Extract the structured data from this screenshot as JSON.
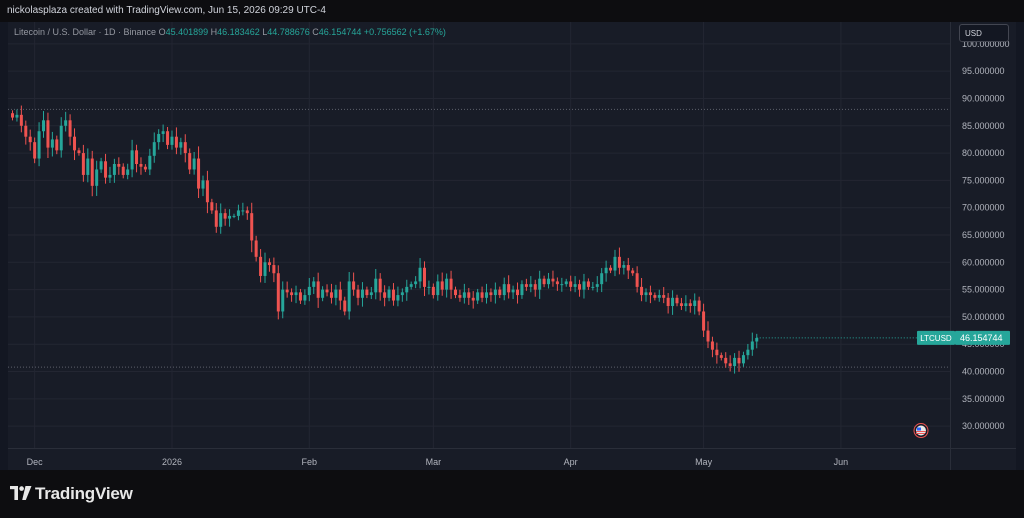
{
  "header": {
    "attribution": "nickolasplaza created with TradingView.com, Jun 15, 2026 09:29 UTC-4"
  },
  "legend": {
    "symbol": "Litecoin / U.S. Dollar · 1D · Binance",
    "o_label": "O",
    "o": "45.401899",
    "h_label": "H",
    "h": "46.183462",
    "l_label": "L",
    "l": "44.788676",
    "c_label": "C",
    "c": "46.154744",
    "change": "+0.756562 (+1.67%)"
  },
  "currency_button": "USD",
  "last_price_label": {
    "ticker": "LTCUSD",
    "price": "46.154744"
  },
  "footer": {
    "brand": "TradingView"
  },
  "colors": {
    "up": "#26a69a",
    "down": "#ef5350",
    "background": "#181c27",
    "grid": "#232632",
    "text": "#b2b5be"
  },
  "chart_data": {
    "type": "candlestick",
    "title": "Litecoin / U.S. Dollar · 1D · Binance",
    "ylim": [
      26,
      104
    ],
    "y_ticks": [
      "30.000000",
      "35.000000",
      "40.000000",
      "45.000000",
      "50.000000",
      "55.000000",
      "60.000000",
      "65.000000",
      "70.000000",
      "75.000000",
      "80.000000",
      "85.000000",
      "90.000000",
      "95.000000",
      "100.000000"
    ],
    "x_ticks": [
      {
        "label": "Dec",
        "index": 5
      },
      {
        "label": "2026",
        "index": 36
      },
      {
        "label": "Feb",
        "index": 67
      },
      {
        "label": "Mar",
        "index": 95
      },
      {
        "label": "Apr",
        "index": 126
      },
      {
        "label": "May",
        "index": 156
      },
      {
        "label": "Jun",
        "index": 187
      }
    ],
    "reference_lines": [
      88.0,
      40.8
    ],
    "close_series": [
      86.5,
      87.0,
      85.0,
      83.0,
      82.0,
      79.0,
      84.0,
      86.0,
      81.0,
      82.5,
      80.5,
      85.0,
      86.0,
      83.0,
      80.5,
      80.0,
      76.0,
      79.0,
      74.0,
      77.0,
      78.5,
      75.5,
      76.0,
      78.0,
      77.5,
      76.0,
      77.0,
      80.5,
      78.0,
      77.5,
      77.0,
      79.5,
      82.0,
      83.5,
      84.0,
      81.5,
      83.0,
      81.0,
      82.0,
      80.0,
      77.0,
      79.0,
      73.5,
      75.0,
      71.0,
      69.5,
      66.5,
      69.0,
      68.0,
      68.5,
      68.5,
      69.5,
      69.5,
      69.0,
      64.0,
      61.0,
      57.5,
      60.0,
      59.5,
      58.0,
      51.0,
      55.0,
      54.5,
      54.0,
      54.5,
      53.0,
      54.0,
      55.5,
      56.5,
      53.5,
      55.0,
      54.5,
      53.5,
      55.0,
      53.0,
      51.0,
      56.5,
      55.0,
      53.5,
      55.0,
      54.0,
      54.5,
      57.0,
      54.5,
      53.5,
      55.0,
      53.0,
      54.0,
      54.5,
      55.5,
      56.0,
      56.5,
      59.0,
      55.5,
      55.5,
      54.0,
      56.5,
      55.0,
      57.0,
      55.0,
      54.0,
      53.5,
      54.5,
      53.5,
      53.0,
      54.5,
      53.5,
      54.5,
      54.0,
      55.0,
      54.0,
      56.0,
      54.5,
      55.0,
      54.0,
      56.0,
      55.5,
      56.0,
      55.0,
      57.0,
      56.0,
      57.0,
      56.5,
      56.0,
      56.0,
      56.5,
      55.5,
      56.0,
      55.0,
      56.5,
      55.5,
      55.5,
      56.0,
      58.0,
      59.0,
      58.5,
      61.0,
      59.0,
      59.5,
      58.5,
      58.0,
      55.5,
      54.0,
      54.5,
      54.0,
      53.5,
      54.0,
      53.5,
      52.0,
      53.5,
      52.5,
      52.0,
      52.5,
      52.0,
      53.0,
      51.0,
      47.5,
      45.5,
      44.0,
      43.0,
      42.5,
      41.5,
      41.0,
      42.5,
      41.5,
      43.0,
      44.0,
      45.5,
      46.15
    ]
  }
}
